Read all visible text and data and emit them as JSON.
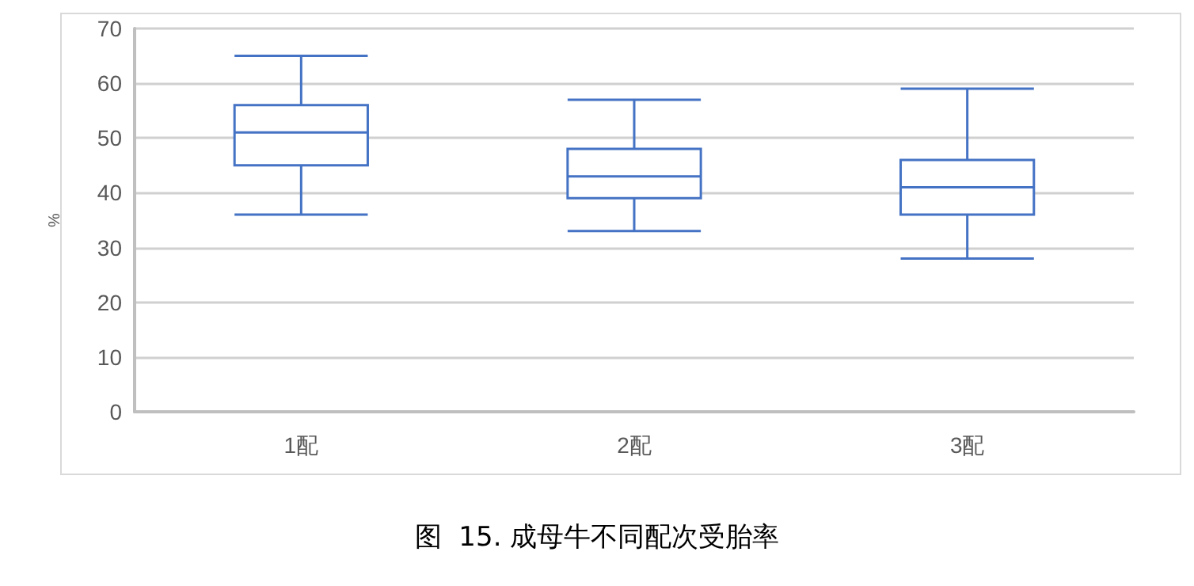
{
  "chart_data": {
    "type": "box",
    "title": "图  15. 成母牛不同配次受胎率",
    "ylabel": "%",
    "categories": [
      "1配",
      "2配",
      "3配"
    ],
    "color": "#4472c4",
    "boxes": [
      {
        "low": 36,
        "q1": 45,
        "median": 51,
        "q3": 56,
        "high": 65
      },
      {
        "low": 33,
        "q1": 39,
        "median": 43,
        "q3": 48,
        "high": 57
      },
      {
        "low": 28,
        "q1": 36,
        "median": 41,
        "q3": 46,
        "high": 59
      }
    ],
    "ylim": [
      0,
      70
    ],
    "yticks": [
      0,
      10,
      20,
      30,
      40,
      50,
      60,
      70
    ],
    "grid": "y"
  }
}
